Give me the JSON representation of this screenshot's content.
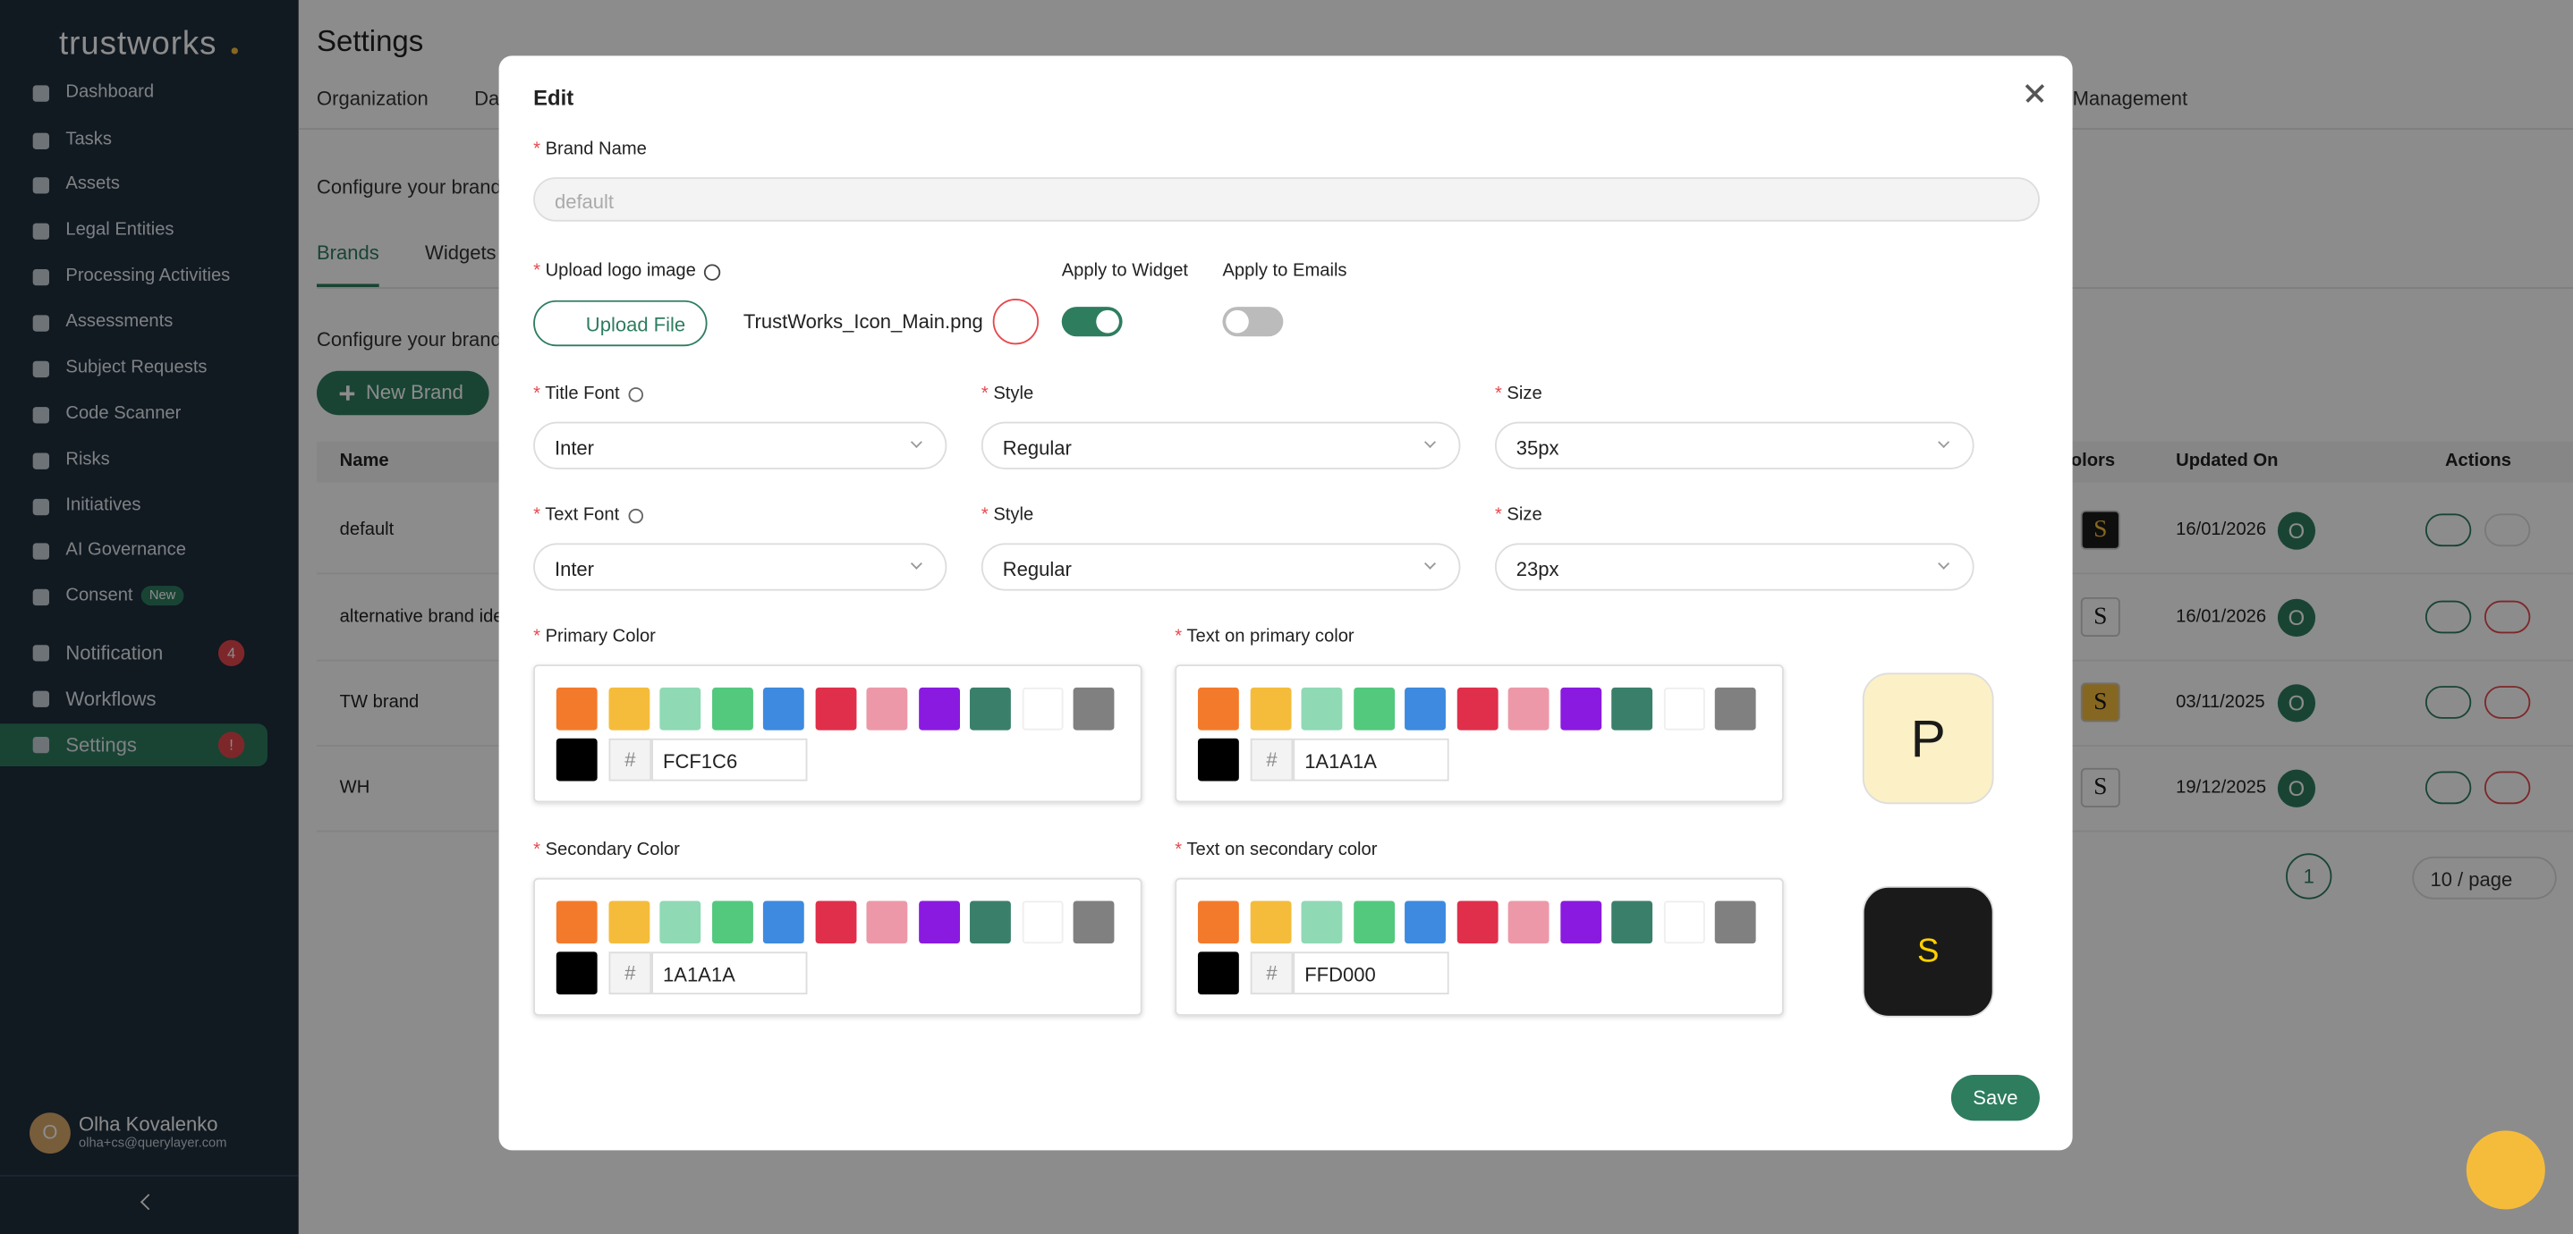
{
  "sidebar": {
    "logo": "trustworks",
    "items": [
      {
        "label": "Dashboard"
      },
      {
        "label": "Tasks"
      },
      {
        "label": "Assets"
      },
      {
        "label": "Legal Entities"
      },
      {
        "label": "Processing Activities"
      },
      {
        "label": "Assessments"
      },
      {
        "label": "Subject Requests"
      },
      {
        "label": "Code Scanner"
      },
      {
        "label": "Risks"
      },
      {
        "label": "Initiatives"
      },
      {
        "label": "AI Governance"
      },
      {
        "label": "Consent",
        "badge": "New"
      },
      {
        "label": "Notification",
        "badge": "4"
      },
      {
        "label": "Workflows"
      },
      {
        "label": "Settings",
        "badge": "!"
      }
    ],
    "user": {
      "initial": "O",
      "name": "Olha Kovalenko",
      "email": "olha+cs@querylayer.com"
    }
  },
  "page": {
    "title": "Settings",
    "tabs": [
      "Organization",
      "Da",
      "Management"
    ],
    "description": "Configure your brand",
    "subtabs": [
      "Brands",
      "Widgets"
    ],
    "subdescription": "Configure your brand",
    "new_button": "New Brand",
    "table": {
      "columns": [
        "Name",
        "olors",
        "Updated On",
        "Actions"
      ],
      "rows": [
        {
          "name": "default",
          "swatch": "S",
          "date": "16/01/2026",
          "avatar": "O"
        },
        {
          "name": "alternative brand ide",
          "swatch": "S",
          "date": "16/01/2026",
          "avatar": "O"
        },
        {
          "name": "TW brand",
          "swatch": "S",
          "date": "03/11/2025",
          "avatar": "O"
        },
        {
          "name": "WH",
          "swatch": "S",
          "date": "19/12/2025",
          "avatar": "O"
        }
      ]
    },
    "pagination": {
      "page": "1",
      "size": "10 / page"
    }
  },
  "modal": {
    "title": "Edit",
    "brand_name": {
      "label": "Brand Name",
      "placeholder": "default"
    },
    "logo": {
      "label": "Upload logo image",
      "button": "Upload File",
      "file": "TrustWorks_Icon_Main.png"
    },
    "toggles": [
      {
        "label": "Apply to Widget",
        "on": true
      },
      {
        "label": "Apply to Emails",
        "on": false
      }
    ],
    "font_rows": [
      [
        {
          "label": "Title Font",
          "value": "Inter"
        },
        {
          "label": "Style",
          "value": "Regular"
        },
        {
          "label": "Size",
          "value": "35px"
        }
      ],
      [
        {
          "label": "Text Font",
          "value": "Inter"
        },
        {
          "label": "Style",
          "value": "Regular"
        },
        {
          "label": "Size",
          "value": "23px"
        }
      ]
    ],
    "hash": "#",
    "colors": [
      {
        "label": "Primary Color",
        "hex": "FCF1C6"
      },
      {
        "label": "Text on primary color",
        "hex": "1A1A1A"
      },
      {
        "label": "Secondary Color",
        "hex": "1A1A1A"
      },
      {
        "label": "Text on secondary color",
        "hex": "FFD000"
      }
    ],
    "previews": [
      "P",
      "S"
    ],
    "save": "Save"
  }
}
